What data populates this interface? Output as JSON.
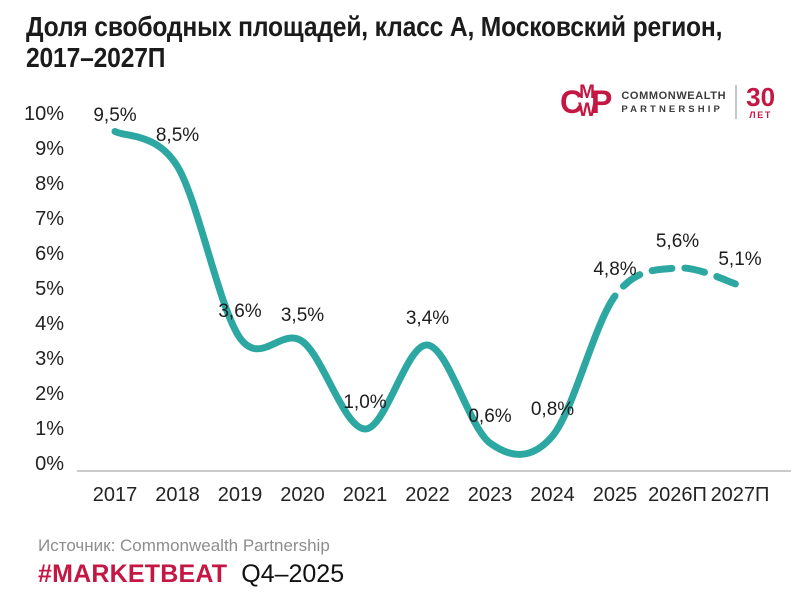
{
  "header": {
    "title_line1": "Доля свободных площадей, класс А, Московский регион,",
    "title_line2": "2017–2027П"
  },
  "logo": {
    "monogram_c": "C",
    "monogram_m": "M",
    "monogram_w": "W",
    "monogram_p": "P",
    "name_line1": "COMMONWEALTH",
    "name_line2": "PARTNERSHIP",
    "anniversary_number": "30",
    "anniversary_unit": "ЛЕТ",
    "brand_color": "#C41743"
  },
  "chart_data": {
    "type": "line",
    "title": "Доля свободных площадей, класс А, Московский регион, 2017–2027П",
    "categories": [
      "2017",
      "2018",
      "2019",
      "2020",
      "2021",
      "2022",
      "2023",
      "2024",
      "2025",
      "2026П",
      "2027П"
    ],
    "values": [
      9.5,
      8.5,
      3.6,
      3.5,
      1.0,
      3.4,
      0.6,
      0.8,
      4.8,
      5.6,
      5.1
    ],
    "point_labels": [
      "9,5%",
      "8,5%",
      "3,6%",
      "3,5%",
      "1,0%",
      "3,4%",
      "0,6%",
      "0,8%",
      "4,8%",
      "5,6%",
      "5,1%"
    ],
    "forecast_start_index": 8,
    "forecast_style": "dashed",
    "y_ticks": [
      {
        "value": 10,
        "label": "10%"
      },
      {
        "value": 9,
        "label": "9%"
      },
      {
        "value": 8,
        "label": "8%"
      },
      {
        "value": 7,
        "label": "7%"
      },
      {
        "value": 6,
        "label": "6%"
      },
      {
        "value": 5,
        "label": "5%"
      },
      {
        "value": 4,
        "label": "4%"
      },
      {
        "value": 3,
        "label": "3%"
      },
      {
        "value": 2,
        "label": "2%"
      },
      {
        "value": 1,
        "label": "1%"
      },
      {
        "value": 0,
        "label": "0%"
      }
    ],
    "ylim": [
      0,
      10
    ],
    "grid": false,
    "legend": false,
    "line_color": "#2DA7A1",
    "axis_color": "#CACACA"
  },
  "footer": {
    "source": "Источник: Commonwealth Partnership",
    "hashtag": "#MARKETBEAT",
    "period": "Q4–2025"
  }
}
